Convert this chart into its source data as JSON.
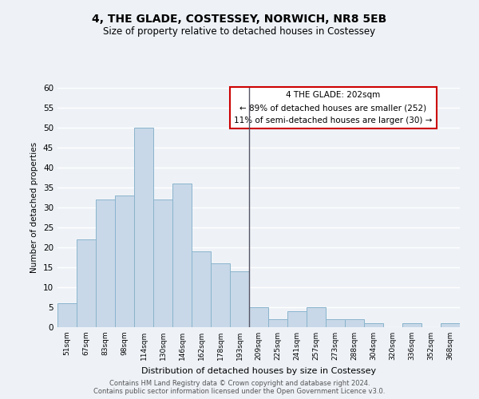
{
  "title": "4, THE GLADE, COSTESSEY, NORWICH, NR8 5EB",
  "subtitle": "Size of property relative to detached houses in Costessey",
  "xlabel": "Distribution of detached houses by size in Costessey",
  "ylabel": "Number of detached properties",
  "categories": [
    "51sqm",
    "67sqm",
    "83sqm",
    "98sqm",
    "114sqm",
    "130sqm",
    "146sqm",
    "162sqm",
    "178sqm",
    "193sqm",
    "209sqm",
    "225sqm",
    "241sqm",
    "257sqm",
    "273sqm",
    "288sqm",
    "304sqm",
    "320sqm",
    "336sqm",
    "352sqm",
    "368sqm"
  ],
  "values": [
    6,
    22,
    32,
    33,
    50,
    32,
    36,
    19,
    16,
    14,
    5,
    2,
    4,
    5,
    2,
    2,
    1,
    0,
    1,
    0,
    1
  ],
  "bar_color": "#c8d8e8",
  "bar_edge_color": "#8ab4cc",
  "annotation_title": "4 THE GLADE: 202sqm",
  "annotation_line1": "← 89% of detached houses are smaller (252)",
  "annotation_line2": "11% of semi-detached houses are larger (30) →",
  "annotation_box_color": "#ffffff",
  "annotation_box_edge": "#cc0000",
  "ylim": [
    0,
    60
  ],
  "yticks": [
    0,
    5,
    10,
    15,
    20,
    25,
    30,
    35,
    40,
    45,
    50,
    55,
    60
  ],
  "background_color": "#eef2f7",
  "grid_color": "#ffffff",
  "footnote1": "Contains HM Land Registry data © Crown copyright and database right 2024.",
  "footnote2": "Contains public sector information licensed under the Open Government Licence v3.0."
}
